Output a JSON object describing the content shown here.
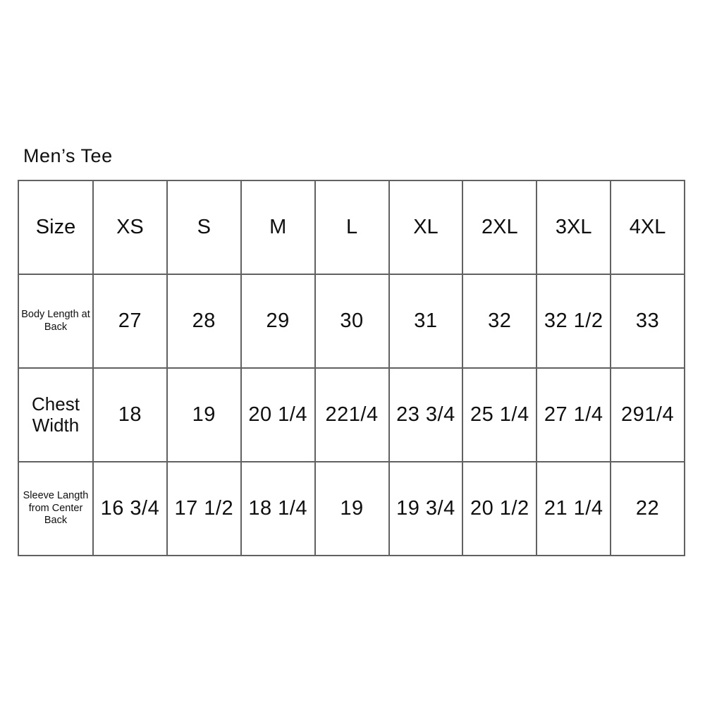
{
  "page": {
    "title": "Men’s Tee"
  },
  "colors": {
    "background": "#ffffff",
    "grid_border": "#616161",
    "text": "#0f0f0f"
  },
  "chart_data": {
    "type": "table",
    "title": "Men’s Tee",
    "columns": [
      "Size",
      "XS",
      "S",
      "M",
      "L",
      "XL",
      "2XL",
      "3XL",
      "4XL"
    ],
    "rows": [
      [
        "Body Length at Back",
        "27",
        "28",
        "29",
        "30",
        "31",
        "32",
        "32 1/2",
        "33"
      ],
      [
        "Chest Width",
        "18",
        "19",
        "20 1/4",
        "221/4",
        "23 3/4",
        "25 1/4",
        "27 1/4",
        "291/4"
      ],
      [
        "Sleeve Langth from Center Back",
        "16 3/4",
        "17 1/2",
        "18 1/4",
        "19",
        "19 3/4",
        "20 1/2",
        "21 1/4",
        "22"
      ]
    ],
    "layout": {
      "grid": "on",
      "header_row": true,
      "label_column": true
    }
  }
}
